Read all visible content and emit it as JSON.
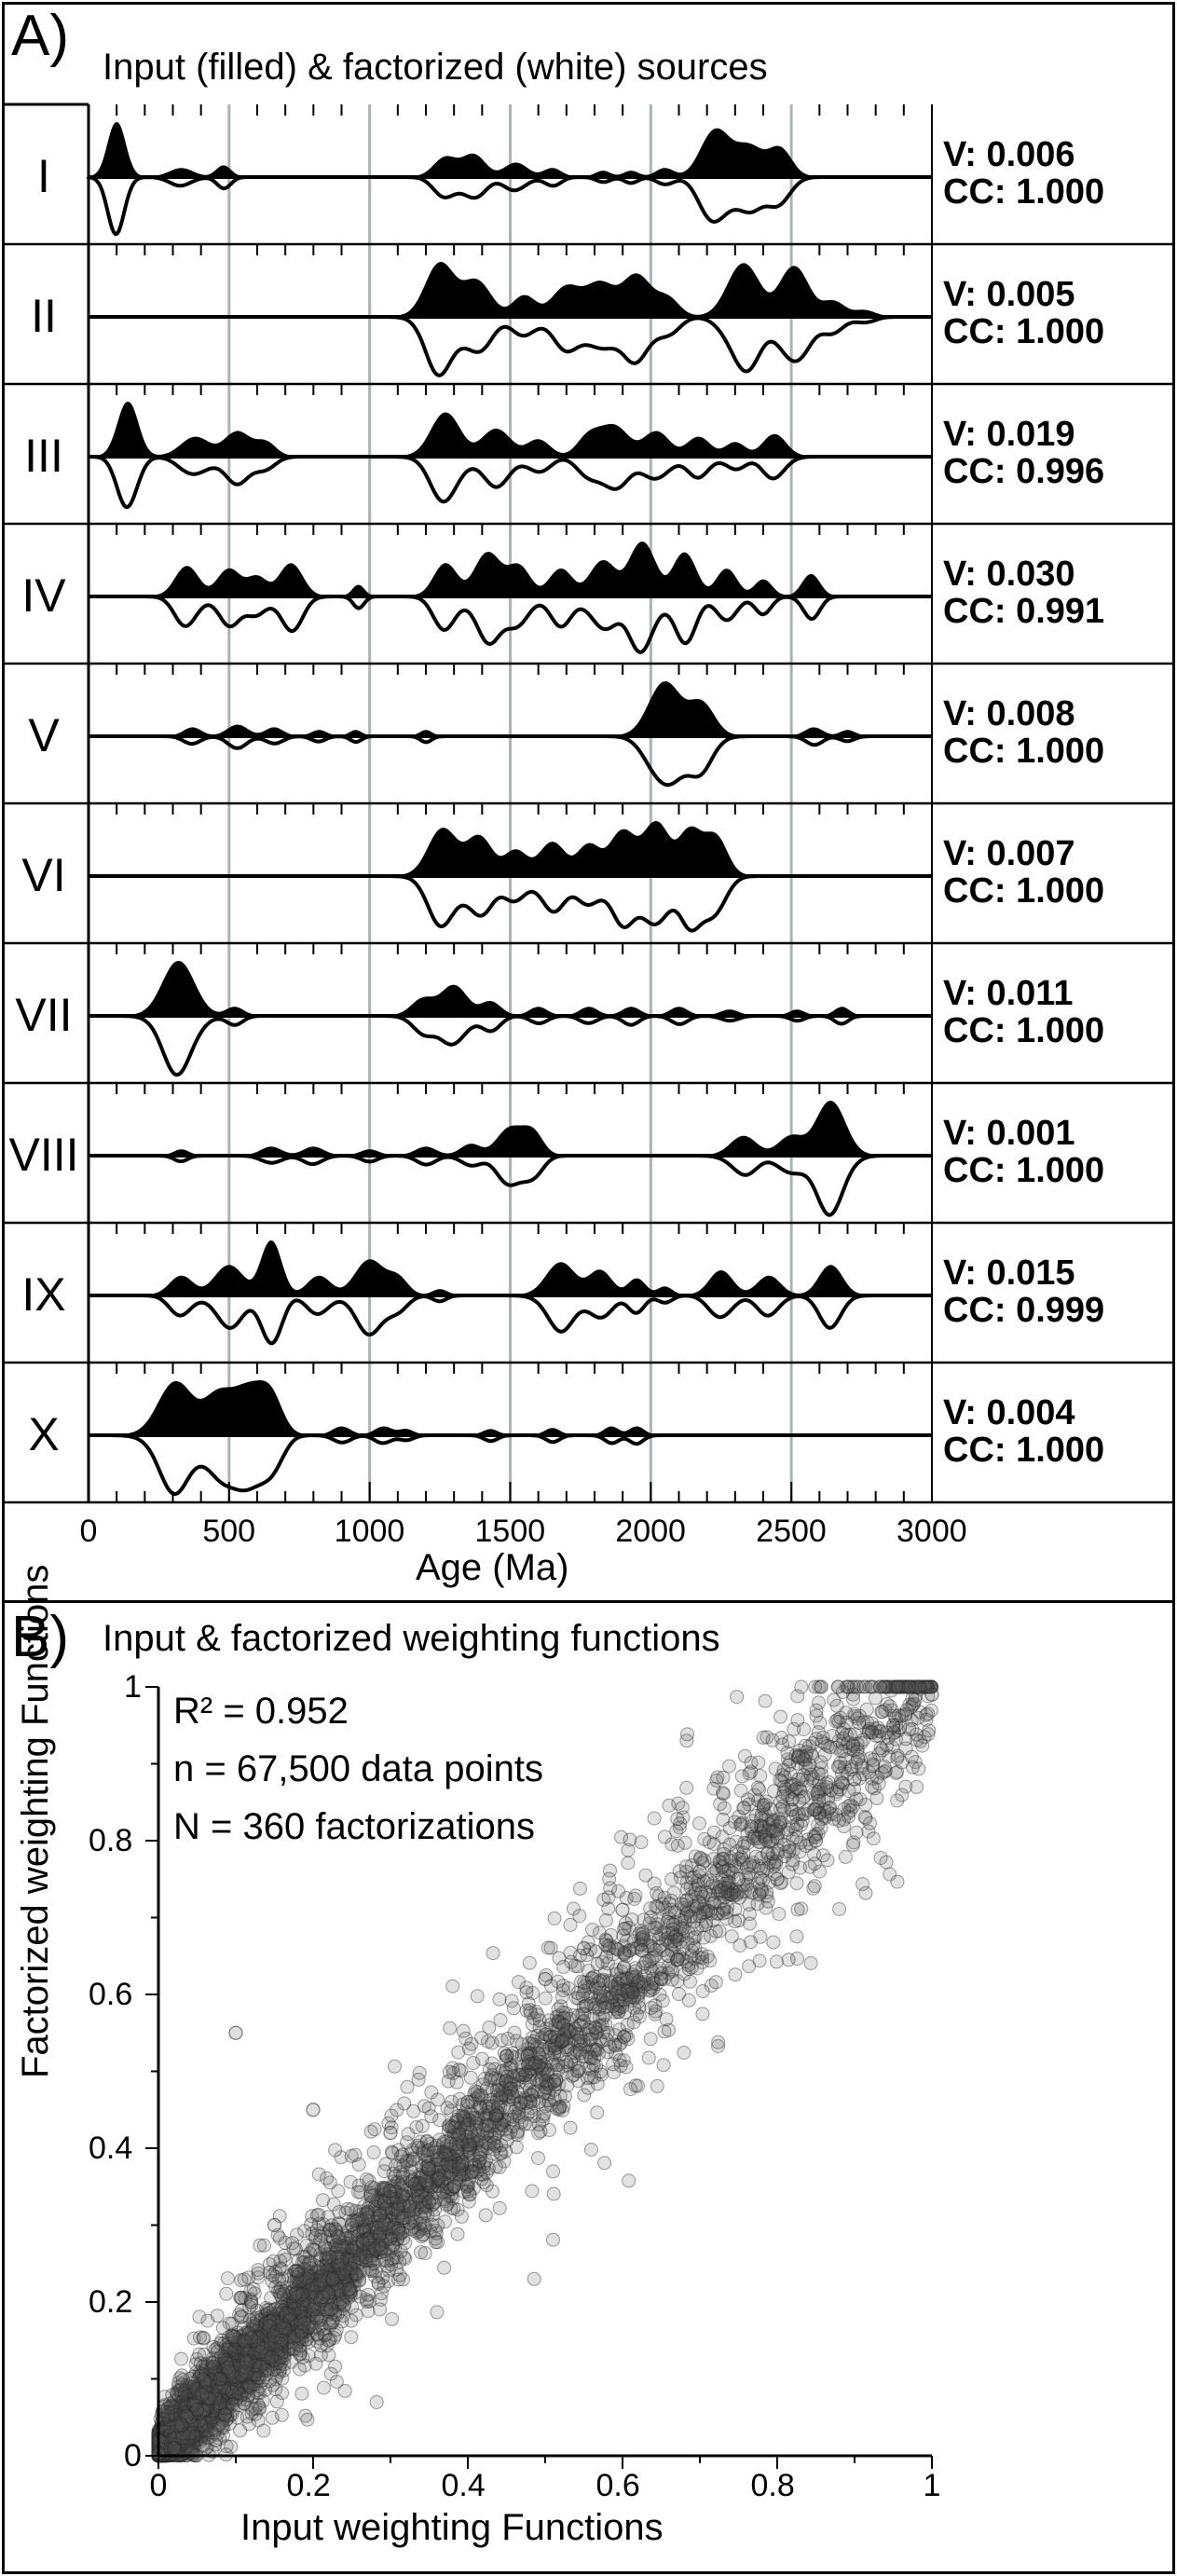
{
  "panel_a": {
    "letter": "A)",
    "title": "Input (filled) & factorized (white) sources",
    "rows": [
      {
        "id": "I",
        "v": "V: 0.006",
        "cc": "CC: 1.000"
      },
      {
        "id": "II",
        "v": "V: 0.005",
        "cc": "CC: 1.000"
      },
      {
        "id": "III",
        "v": "V: 0.019",
        "cc": "CC: 0.996"
      },
      {
        "id": "IV",
        "v": "V: 0.030",
        "cc": "CC: 0.991"
      },
      {
        "id": "V",
        "v": "V: 0.008",
        "cc": "CC: 1.000"
      },
      {
        "id": "VI",
        "v": "V: 0.007",
        "cc": "CC: 1.000"
      },
      {
        "id": "VII",
        "v": "V: 0.011",
        "cc": "CC: 1.000"
      },
      {
        "id": "VIII",
        "v": "V: 0.001",
        "cc": "CC: 1.000"
      },
      {
        "id": "IX",
        "v": "V: 0.015",
        "cc": "CC: 0.999"
      },
      {
        "id": "X",
        "v": "V: 0.004",
        "cc": "CC: 1.000"
      }
    ],
    "xlabel": "Age (Ma)",
    "xticks": [
      "0",
      "500",
      "1000",
      "1500",
      "2000",
      "2500",
      "3000"
    ]
  },
  "panel_b": {
    "letter": "B)",
    "title": "Input  & factorized weighting functions",
    "stats": {
      "r2": "R² = 0.952",
      "n": "n = 67,500 data points",
      "N": "N = 360 factorizations"
    },
    "xlabel": "Input weighting Functions",
    "ylabel": "Factorized weighting Functions",
    "xticks": [
      "0",
      "0.2",
      "0.4",
      "0.6",
      "0.8",
      "1"
    ],
    "yticks": [
      "0",
      "0.2",
      "0.4",
      "0.6",
      "0.8",
      "1"
    ]
  },
  "chart_data": [
    {
      "type": "area",
      "panel": "A",
      "title": "Input (filled) & factorized (white) sources",
      "xlabel": "Age (Ma)",
      "xlim": [
        0,
        3000
      ],
      "grid_x": [
        500,
        1000,
        1500,
        2000,
        2500
      ],
      "series": [
        {
          "name": "I",
          "peaks": [
            [
              100,
              1.0,
              30
            ],
            [
              330,
              0.15,
              40
            ],
            [
              480,
              0.2,
              25
            ],
            [
              1270,
              0.35,
              40
            ],
            [
              1370,
              0.4,
              40
            ],
            [
              1520,
              0.25,
              40
            ],
            [
              1650,
              0.15,
              30
            ],
            [
              1830,
              0.1,
              25
            ],
            [
              1930,
              0.1,
              25
            ],
            [
              2050,
              0.15,
              30
            ],
            [
              2230,
              0.85,
              50
            ],
            [
              2350,
              0.55,
              50
            ],
            [
              2460,
              0.5,
              40
            ]
          ]
        },
        {
          "name": "II",
          "peaks": [
            [
              1250,
              0.9,
              50
            ],
            [
              1380,
              0.6,
              50
            ],
            [
              1550,
              0.35,
              40
            ],
            [
              1700,
              0.5,
              50
            ],
            [
              1820,
              0.55,
              50
            ],
            [
              1950,
              0.7,
              50
            ],
            [
              2060,
              0.3,
              40
            ],
            [
              2330,
              0.9,
              55
            ],
            [
              2510,
              0.85,
              50
            ],
            [
              2650,
              0.25,
              40
            ],
            [
              2760,
              0.1,
              35
            ]
          ]
        },
        {
          "name": "III",
          "peaks": [
            [
              140,
              1.0,
              35
            ],
            [
              380,
              0.35,
              50
            ],
            [
              530,
              0.45,
              45
            ],
            [
              630,
              0.25,
              35
            ],
            [
              1270,
              0.8,
              50
            ],
            [
              1450,
              0.5,
              50
            ],
            [
              1600,
              0.3,
              40
            ],
            [
              1780,
              0.35,
              40
            ],
            [
              1870,
              0.55,
              50
            ],
            [
              2020,
              0.45,
              45
            ],
            [
              2170,
              0.35,
              40
            ],
            [
              2300,
              0.25,
              35
            ],
            [
              2440,
              0.4,
              40
            ]
          ]
        },
        {
          "name": "IV",
          "peaks": [
            [
              350,
              0.55,
              40
            ],
            [
              500,
              0.5,
              40
            ],
            [
              600,
              0.35,
              35
            ],
            [
              720,
              0.6,
              40
            ],
            [
              960,
              0.2,
              20
            ],
            [
              1270,
              0.6,
              40
            ],
            [
              1420,
              0.8,
              45
            ],
            [
              1530,
              0.55,
              40
            ],
            [
              1680,
              0.5,
              40
            ],
            [
              1830,
              0.65,
              45
            ],
            [
              1970,
              1.0,
              45
            ],
            [
              2120,
              0.8,
              40
            ],
            [
              2270,
              0.5,
              35
            ],
            [
              2400,
              0.3,
              30
            ],
            [
              2570,
              0.4,
              30
            ]
          ]
        },
        {
          "name": "V",
          "peaks": [
            [
              370,
              0.15,
              30
            ],
            [
              530,
              0.2,
              35
            ],
            [
              660,
              0.15,
              30
            ],
            [
              820,
              0.1,
              25
            ],
            [
              950,
              0.1,
              20
            ],
            [
              1200,
              0.1,
              20
            ],
            [
              2050,
              1.0,
              55
            ],
            [
              2180,
              0.6,
              45
            ],
            [
              2580,
              0.15,
              30
            ],
            [
              2700,
              0.1,
              25
            ]
          ]
        },
        {
          "name": "VI",
          "peaks": [
            [
              1260,
              0.85,
              50
            ],
            [
              1390,
              0.7,
              45
            ],
            [
              1520,
              0.45,
              40
            ],
            [
              1650,
              0.6,
              45
            ],
            [
              1780,
              0.55,
              40
            ],
            [
              1900,
              0.8,
              45
            ],
            [
              2020,
              0.95,
              45
            ],
            [
              2140,
              0.8,
              40
            ],
            [
              2230,
              0.7,
              40
            ]
          ]
        },
        {
          "name": "VII",
          "peaks": [
            [
              320,
              1.0,
              55
            ],
            [
              520,
              0.15,
              30
            ],
            [
              1190,
              0.3,
              40
            ],
            [
              1300,
              0.55,
              45
            ],
            [
              1430,
              0.25,
              35
            ],
            [
              1600,
              0.15,
              30
            ],
            [
              1780,
              0.15,
              30
            ],
            [
              1930,
              0.15,
              30
            ],
            [
              2100,
              0.15,
              30
            ],
            [
              2280,
              0.1,
              30
            ],
            [
              2520,
              0.1,
              25
            ],
            [
              2680,
              0.15,
              25
            ]
          ]
        },
        {
          "name": "VIII",
          "peaks": [
            [
              330,
              0.1,
              25
            ],
            [
              650,
              0.15,
              35
            ],
            [
              800,
              0.15,
              35
            ],
            [
              1000,
              0.1,
              30
            ],
            [
              1200,
              0.15,
              35
            ],
            [
              1360,
              0.2,
              35
            ],
            [
              1500,
              0.5,
              45
            ],
            [
              1580,
              0.4,
              35
            ],
            [
              2330,
              0.35,
              45
            ],
            [
              2500,
              0.35,
              45
            ],
            [
              2640,
              1.0,
              50
            ]
          ]
        },
        {
          "name": "IX",
          "peaks": [
            [
              330,
              0.35,
              40
            ],
            [
              500,
              0.55,
              50
            ],
            [
              650,
              1.0,
              35
            ],
            [
              820,
              0.35,
              40
            ],
            [
              1000,
              0.65,
              50
            ],
            [
              1100,
              0.3,
              35
            ],
            [
              1250,
              0.1,
              25
            ],
            [
              1680,
              0.6,
              50
            ],
            [
              1820,
              0.45,
              40
            ],
            [
              1950,
              0.3,
              30
            ],
            [
              2050,
              0.15,
              25
            ],
            [
              2250,
              0.45,
              40
            ],
            [
              2420,
              0.35,
              40
            ],
            [
              2640,
              0.55,
              40
            ]
          ]
        },
        {
          "name": "X",
          "peaks": [
            [
              310,
              1.0,
              60
            ],
            [
              460,
              0.7,
              50
            ],
            [
              570,
              0.85,
              55
            ],
            [
              650,
              0.6,
              40
            ],
            [
              900,
              0.15,
              30
            ],
            [
              1050,
              0.15,
              30
            ],
            [
              1130,
              0.1,
              25
            ],
            [
              1430,
              0.1,
              25
            ],
            [
              1650,
              0.12,
              25
            ],
            [
              1860,
              0.15,
              25
            ],
            [
              1950,
              0.15,
              25
            ]
          ]
        }
      ]
    },
    {
      "type": "scatter",
      "panel": "B",
      "title": "Input  & factorized weighting functions",
      "xlabel": "Input weighting Functions",
      "ylabel": "Factorized weighting Functions",
      "xlim": [
        0,
        1
      ],
      "ylim": [
        0,
        1
      ],
      "r2": 0.952,
      "n_points": 67500,
      "n_factorizations": 360,
      "sample_points": [
        [
          0.02,
          0.01
        ],
        [
          0.05,
          0.06
        ],
        [
          0.08,
          0.1
        ],
        [
          0.1,
          0.55
        ],
        [
          0.12,
          0.2
        ],
        [
          0.15,
          0.3
        ],
        [
          0.18,
          0.24
        ],
        [
          0.2,
          0.45
        ],
        [
          0.22,
          0.15
        ],
        [
          0.25,
          0.3
        ],
        [
          0.3,
          0.42
        ],
        [
          0.35,
          0.33
        ],
        [
          0.4,
          0.46
        ],
        [
          0.45,
          0.52
        ],
        [
          0.5,
          0.62
        ],
        [
          0.55,
          0.66
        ],
        [
          0.6,
          0.71
        ],
        [
          0.65,
          0.62
        ],
        [
          0.7,
          0.76
        ],
        [
          0.75,
          0.75
        ],
        [
          0.8,
          0.75
        ],
        [
          0.85,
          0.8
        ],
        [
          0.9,
          0.88
        ],
        [
          0.95,
          0.95
        ],
        [
          1.0,
          0.99
        ]
      ]
    }
  ]
}
